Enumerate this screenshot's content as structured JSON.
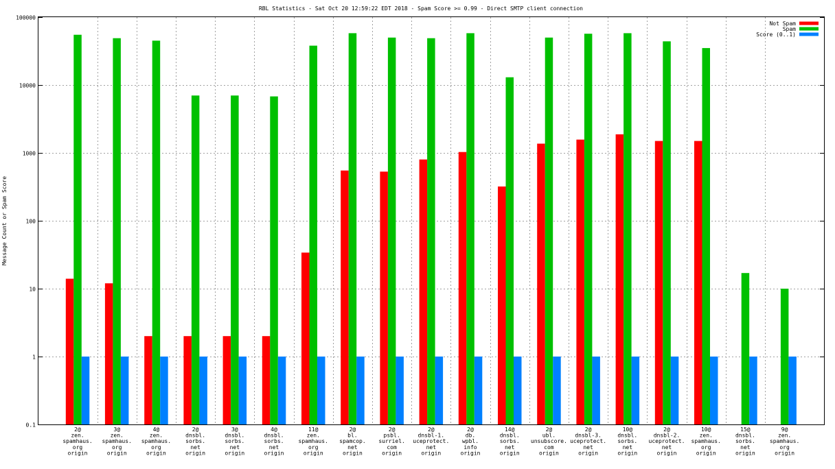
{
  "chart_data": {
    "type": "bar",
    "title": "RBL Statistics - Sat Oct 20 12:59:22 EDT 2018 - Spam Score >= 0.99 - Direct SMTP client connection",
    "xlabel": "",
    "ylabel": "Message Count or Spam Score",
    "yscale": "log",
    "ylim": [
      0.1,
      100000
    ],
    "yticks": [
      0.1,
      1,
      10,
      100,
      1000,
      10000,
      100000
    ],
    "ytick_labels": [
      "0.1",
      "1",
      "10",
      "100",
      "1000",
      "10000",
      "100000"
    ],
    "grid": true,
    "legend_position": "top-right",
    "categories": [
      [
        "2@",
        "zen.",
        "spamhaus.",
        "org",
        "origin"
      ],
      [
        "3@",
        "zen.",
        "spamhaus.",
        "org",
        "origin"
      ],
      [
        "4@",
        "zen.",
        "spamhaus.",
        "org",
        "origin"
      ],
      [
        "2@",
        "dnsbl.",
        "sorbs.",
        "net",
        "origin"
      ],
      [
        "3@",
        "dnsbl.",
        "sorbs.",
        "net",
        "origin"
      ],
      [
        "4@",
        "dnsbl.",
        "sorbs.",
        "net",
        "origin"
      ],
      [
        "11@",
        "zen.",
        "spamhaus.",
        "org",
        "origin"
      ],
      [
        "2@",
        "bl.",
        "spamcop.",
        "net",
        "origin"
      ],
      [
        "2@",
        "psbl.",
        "surriel.",
        "com",
        "origin"
      ],
      [
        "2@",
        "dnsbl-1.",
        "uceprotect.",
        "net",
        "origin"
      ],
      [
        "2@",
        "db.",
        "wpbl.",
        "info",
        "origin"
      ],
      [
        "14@",
        "dnsbl.",
        "sorbs.",
        "net",
        "origin"
      ],
      [
        "2@",
        "ubl.",
        "unsubscore.",
        "com",
        "origin"
      ],
      [
        "2@",
        "dnsbl-3.",
        "uceprotect.",
        "net",
        "origin"
      ],
      [
        "10@",
        "dnsbl.",
        "sorbs.",
        "net",
        "origin"
      ],
      [
        "2@",
        "dnsbl-2.",
        "uceprotect.",
        "net",
        "origin"
      ],
      [
        "10@",
        "zen.",
        "spamhaus.",
        "org",
        "origin"
      ],
      [
        "15@",
        "dnsbl.",
        "sorbs.",
        "net",
        "origin"
      ],
      [
        "9@",
        "zen.",
        "spamhaus.",
        "org",
        "origin"
      ]
    ],
    "series": [
      {
        "name": "Not Spam",
        "color": "#ff0000",
        "values": [
          14,
          12,
          2,
          2,
          2,
          2,
          34,
          550,
          530,
          800,
          1030,
          320,
          1370,
          1570,
          1880,
          1500,
          1500,
          null,
          null
        ]
      },
      {
        "name": "Spam",
        "color": "#00c000",
        "values": [
          55000,
          49000,
          45000,
          7000,
          7000,
          6800,
          38000,
          58000,
          50000,
          49000,
          58000,
          13000,
          50000,
          57000,
          58000,
          44000,
          35000,
          17,
          10
        ]
      },
      {
        "name": "Score (0..1)",
        "color": "#0080ff",
        "values": [
          1,
          1,
          1,
          1,
          1,
          1,
          1,
          1,
          1,
          1,
          1,
          1,
          1,
          1,
          1,
          1,
          1,
          1,
          1
        ]
      }
    ]
  }
}
